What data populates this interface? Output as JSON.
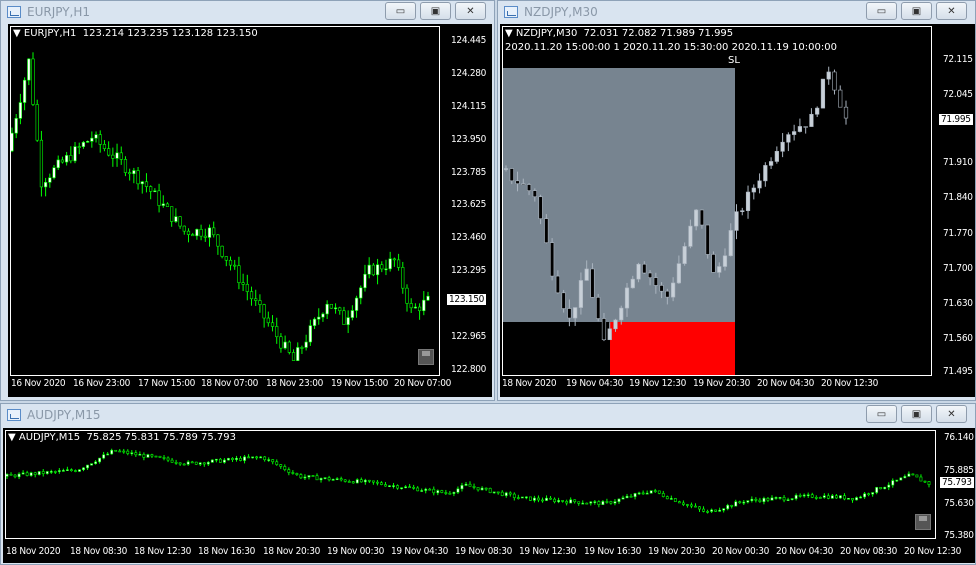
{
  "windows": [
    {
      "id": "eurjpy",
      "title": "EURJPY,H1",
      "header": "EURJPY,H1  123.214 123.235 123.128 123.150",
      "current_price": "123.150",
      "price_ticks": [
        "124.445",
        "124.280",
        "124.115",
        "123.950",
        "123.785",
        "123.625",
        "123.460",
        "123.295",
        "122.965",
        "122.800"
      ],
      "time_labels": [
        "16 Nov 2020",
        "16 Nov 23:00",
        "17 Nov 15:00",
        "18 Nov 07:00",
        "18 Nov 23:00",
        "19 Nov 15:00",
        "20 Nov 07:00"
      ],
      "path": [
        [
          0,
          123.9
        ],
        [
          0.05,
          124.35
        ],
        [
          0.08,
          123.75
        ],
        [
          0.2,
          123.97
        ],
        [
          0.32,
          123.75
        ],
        [
          0.42,
          123.5
        ],
        [
          0.48,
          123.5
        ],
        [
          0.6,
          123.1
        ],
        [
          0.68,
          122.85
        ],
        [
          0.76,
          123.15
        ],
        [
          0.8,
          123.05
        ],
        [
          0.86,
          123.3
        ],
        [
          0.92,
          123.35
        ],
        [
          0.96,
          123.1
        ],
        [
          1,
          123.15
        ]
      ],
      "colors": {
        "wick": "#00ff00",
        "bull": "#ffffff",
        "bear": "#000000"
      }
    },
    {
      "id": "nzdjpy",
      "title": "NZDJPY,M30",
      "header": "NZDJPY,M30  72.031 72.082 71.989 71.995",
      "header2": "2020.11.20 15:00:00 1 2020.11.20 15:30:00 2020.11.19 10:00:00",
      "sl_label": "SL",
      "current_price": "71.995",
      "price_ticks": [
        "72.115",
        "72.045",
        "71.910",
        "71.840",
        "71.770",
        "71.700",
        "71.630",
        "71.560",
        "71.495"
      ],
      "time_labels": [
        "18 Nov 2020",
        "19 Nov 04:30",
        "19 Nov 12:30",
        "19 Nov 20:30",
        "20 Nov 04:30",
        "20 Nov 12:30"
      ],
      "path": [
        [
          0,
          71.9
        ],
        [
          0.1,
          71.85
        ],
        [
          0.15,
          71.7
        ],
        [
          0.2,
          71.6
        ],
        [
          0.25,
          71.7
        ],
        [
          0.3,
          71.55
        ],
        [
          0.4,
          71.72
        ],
        [
          0.48,
          71.64
        ],
        [
          0.57,
          71.82
        ],
        [
          0.62,
          71.68
        ],
        [
          0.68,
          71.8
        ],
        [
          0.82,
          71.97
        ],
        [
          0.9,
          72.0
        ],
        [
          0.95,
          72.1
        ],
        [
          1,
          72.0
        ]
      ],
      "colors": {
        "wick": "#aab4bf",
        "bull": "#c8d0d8",
        "bear": "#000000",
        "zone": "#778490",
        "sl_zone": "#ff0000"
      }
    },
    {
      "id": "audjpy",
      "title": "AUDJPY,M15",
      "header": "AUDJPY,M15  75.825 75.831 75.789 75.793",
      "current_price": "75.793",
      "price_ticks": [
        "76.140",
        "75.885",
        "75.630",
        "75.380"
      ],
      "time_labels": [
        "18 Nov 2020",
        "18 Nov 08:30",
        "18 Nov 12:30",
        "18 Nov 16:30",
        "18 Nov 20:30",
        "19 Nov 00:30",
        "19 Nov 04:30",
        "19 Nov 08:30",
        "19 Nov 12:30",
        "19 Nov 16:30",
        "19 Nov 20:30",
        "20 Nov 00:30",
        "20 Nov 04:30",
        "20 Nov 08:30",
        "20 Nov 12:30"
      ],
      "path": [
        [
          0,
          75.85
        ],
        [
          0.08,
          75.9
        ],
        [
          0.12,
          76.05
        ],
        [
          0.2,
          75.95
        ],
        [
          0.28,
          76.0
        ],
        [
          0.32,
          75.85
        ],
        [
          0.4,
          75.8
        ],
        [
          0.48,
          75.72
        ],
        [
          0.5,
          75.78
        ],
        [
          0.56,
          75.68
        ],
        [
          0.65,
          75.64
        ],
        [
          0.7,
          75.74
        ],
        [
          0.76,
          75.57
        ],
        [
          0.8,
          75.66
        ],
        [
          0.88,
          75.7
        ],
        [
          0.92,
          75.68
        ],
        [
          0.98,
          75.86
        ],
        [
          1,
          75.793
        ]
      ],
      "colors": {
        "wick": "#00ff00",
        "bull": "#ffffff",
        "bear": "#000000"
      }
    }
  ]
}
